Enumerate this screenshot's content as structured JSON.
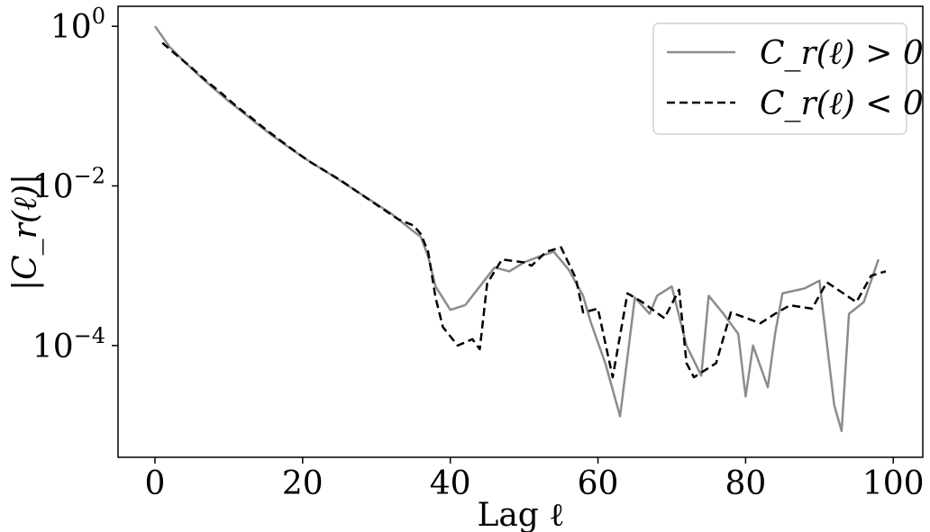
{
  "chart_data": {
    "type": "line",
    "xlabel": "Lag ℓ",
    "ylabel": "|C_r(ℓ)|",
    "xlim": [
      -5,
      104
    ],
    "ylim_log10": [
      -5.4,
      0.25
    ],
    "y_scale": "log",
    "xticks": [
      0,
      20,
      40,
      60,
      80,
      100
    ],
    "yticks": [
      {
        "label_base": "10",
        "label_exp": "0",
        "value": 1
      },
      {
        "label_base": "10",
        "label_exp": "−2",
        "value": 0.01
      },
      {
        "label_base": "10",
        "label_exp": "−4",
        "value": 0.0001
      }
    ],
    "grid": false,
    "legend_position": "top-right",
    "series": [
      {
        "name": "C_r(ℓ) > 0",
        "legend_label": "C_r(ℓ) > 0",
        "color": "#8c8c8c",
        "style": "solid",
        "points": [
          [
            0,
            1.0
          ],
          [
            2,
            0.55
          ],
          [
            4,
            0.36
          ],
          [
            6,
            0.24
          ],
          [
            8,
            0.165
          ],
          [
            10,
            0.115
          ],
          [
            12,
            0.082
          ],
          [
            14,
            0.058
          ],
          [
            16,
            0.042
          ],
          [
            18,
            0.031
          ],
          [
            20,
            0.023
          ],
          [
            24,
            0.0135
          ],
          [
            28,
            0.0078
          ],
          [
            32,
            0.0045
          ],
          [
            35,
            0.0027
          ],
          [
            36,
            0.0023
          ],
          [
            37,
            0.0013
          ],
          [
            38,
            0.00055
          ],
          [
            40,
            0.00028
          ],
          [
            42,
            0.00032
          ],
          [
            44,
            0.00055
          ],
          [
            46,
            0.00095
          ],
          [
            48,
            0.00085
          ],
          [
            50,
            0.0011
          ],
          [
            52,
            0.0013
          ],
          [
            54,
            0.0015
          ],
          [
            56,
            0.0009
          ],
          [
            58,
            0.00042
          ],
          [
            59,
            0.0002
          ],
          [
            61,
            6e-05
          ],
          [
            63,
            1.3e-05
          ],
          [
            65,
            0.0004
          ],
          [
            67,
            0.00025
          ],
          [
            68,
            0.00042
          ],
          [
            70,
            0.00055
          ],
          [
            72,
            0.0001
          ],
          [
            74,
            4.2e-05
          ],
          [
            75,
            0.00042
          ],
          [
            77,
            0.00025
          ],
          [
            79,
            0.00014
          ],
          [
            80,
            2.3e-05
          ],
          [
            81,
            0.0001
          ],
          [
            83,
            3e-05
          ],
          [
            84,
            0.00014
          ],
          [
            85,
            0.00045
          ],
          [
            88,
            0.00052
          ],
          [
            90,
            0.00065
          ],
          [
            92,
            1.8e-05
          ],
          [
            93,
            8.5e-06
          ],
          [
            94,
            0.00025
          ],
          [
            96,
            0.00035
          ],
          [
            98,
            0.0012
          ]
        ]
      },
      {
        "name": "C_r(ℓ) < 0",
        "legend_label": "C_r(ℓ) < 0",
        "color": "#000000",
        "style": "dashed",
        "points": [
          [
            1,
            0.62
          ],
          [
            3,
            0.43
          ],
          [
            5,
            0.3
          ],
          [
            7,
            0.205
          ],
          [
            9,
            0.145
          ],
          [
            11,
            0.1
          ],
          [
            13,
            0.072
          ],
          [
            15,
            0.051
          ],
          [
            17,
            0.037
          ],
          [
            19,
            0.027
          ],
          [
            21,
            0.02
          ],
          [
            25,
            0.012
          ],
          [
            29,
            0.0067
          ],
          [
            33,
            0.0038
          ],
          [
            35,
            0.0032
          ],
          [
            36,
            0.0025
          ],
          [
            37,
            0.0015
          ],
          [
            38,
            0.0004
          ],
          [
            39,
            0.00017
          ],
          [
            41,
            0.0001
          ],
          [
            43,
            0.00012
          ],
          [
            44,
            9e-05
          ],
          [
            45,
            0.0006
          ],
          [
            47,
            0.0012
          ],
          [
            50,
            0.0011
          ],
          [
            51,
            0.001
          ],
          [
            53,
            0.0015
          ],
          [
            55,
            0.0017
          ],
          [
            57,
            0.0007
          ],
          [
            58,
            0.00026
          ],
          [
            60,
            0.00029
          ],
          [
            62,
            4e-05
          ],
          [
            64,
            0.00045
          ],
          [
            66,
            0.00035
          ],
          [
            67,
            0.0003
          ],
          [
            69,
            0.00022
          ],
          [
            71,
            0.0005
          ],
          [
            72,
            6e-05
          ],
          [
            73,
            4e-05
          ],
          [
            76,
            6e-05
          ],
          [
            78,
            0.00026
          ],
          [
            82,
            0.00019
          ],
          [
            84,
            0.00025
          ],
          [
            86,
            0.00032
          ],
          [
            89,
            0.00029
          ],
          [
            91,
            0.00062
          ],
          [
            95,
            0.00035
          ],
          [
            97,
            0.00075
          ],
          [
            99,
            0.00085
          ]
        ]
      }
    ]
  }
}
